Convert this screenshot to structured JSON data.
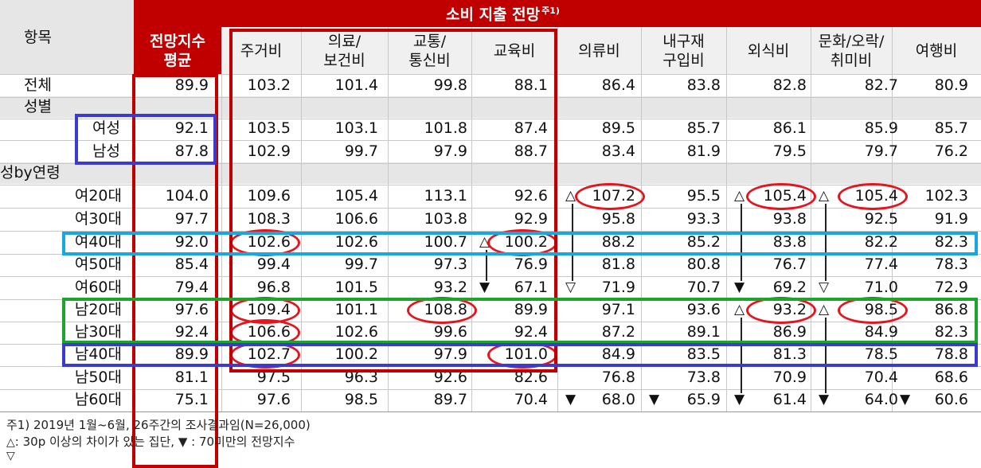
{
  "header": {
    "item_label": "항목",
    "group_title": "소비 지출 전망",
    "group_title_note": "주1)",
    "index_label": "전망지수\n평균",
    "categories": [
      "주거비",
      "의료/\n보건비",
      "교통/\n통신비",
      "교육비",
      "의류비",
      "내구재\n구입비",
      "외식비",
      "문화/오락/\n취미비",
      "여행비"
    ]
  },
  "chart_data": {
    "type": "table",
    "columns": [
      "전망지수 평균",
      "주거비",
      "의료/보건비",
      "교통/통신비",
      "교육비",
      "의류비",
      "내구재구입비",
      "외식비",
      "문화/오락/취미비",
      "여행비"
    ],
    "rows": [
      {
        "label": "전체",
        "values": [
          "89.9",
          "103.2",
          "101.4",
          "99.8",
          "88.1",
          "86.4",
          "83.8",
          "82.8",
          "82.7",
          "80.9"
        ]
      },
      {
        "label": "성별",
        "section": true
      },
      {
        "label": "여성",
        "values": [
          "92.1",
          "103.5",
          "103.1",
          "101.8",
          "87.4",
          "89.5",
          "85.7",
          "86.1",
          "85.9",
          "85.7"
        ]
      },
      {
        "label": "남성",
        "values": [
          "87.8",
          "102.9",
          "99.7",
          "97.9",
          "88.7",
          "83.4",
          "81.9",
          "79.5",
          "79.7",
          "76.2"
        ]
      },
      {
        "label": "성by연령",
        "section": true
      },
      {
        "label": "여20대",
        "values": [
          "104.0",
          "109.6",
          "105.4",
          "113.1",
          "92.6",
          "107.2",
          "95.5",
          "105.4",
          "105.4",
          "102.3"
        ]
      },
      {
        "label": "여30대",
        "values": [
          "97.7",
          "108.3",
          "106.6",
          "103.8",
          "92.9",
          "95.8",
          "93.3",
          "93.8",
          "92.5",
          "91.9"
        ]
      },
      {
        "label": "여40대",
        "values": [
          "92.0",
          "102.6",
          "102.6",
          "100.7",
          "100.2",
          "88.2",
          "85.2",
          "83.8",
          "82.2",
          "82.3"
        ]
      },
      {
        "label": "여50대",
        "values": [
          "85.4",
          "99.4",
          "99.7",
          "97.3",
          "76.9",
          "81.8",
          "80.8",
          "76.7",
          "77.4",
          "78.3"
        ]
      },
      {
        "label": "여60대",
        "values": [
          "79.4",
          "96.8",
          "101.5",
          "93.2",
          "67.1",
          "71.9",
          "70.7",
          "69.2",
          "71.0",
          "72.9"
        ]
      },
      {
        "label": "남20대",
        "values": [
          "97.6",
          "109.4",
          "101.1",
          "108.8",
          "89.9",
          "97.1",
          "93.6",
          "93.2",
          "98.5",
          "86.8"
        ]
      },
      {
        "label": "남30대",
        "values": [
          "92.4",
          "106.6",
          "102.6",
          "99.6",
          "92.4",
          "87.2",
          "89.1",
          "86.9",
          "84.9",
          "82.3"
        ]
      },
      {
        "label": "남40대",
        "values": [
          "89.9",
          "102.7",
          "100.2",
          "97.9",
          "101.0",
          "84.9",
          "83.5",
          "81.3",
          "78.5",
          "78.8"
        ]
      },
      {
        "label": "남50대",
        "values": [
          "81.1",
          "97.5",
          "96.3",
          "92.6",
          "82.6",
          "76.8",
          "73.8",
          "70.9",
          "70.4",
          "68.6"
        ]
      },
      {
        "label": "남60대",
        "values": [
          "75.1",
          "97.6",
          "98.5",
          "89.7",
          "70.4",
          "68.0",
          "65.9",
          "61.4",
          "64.0",
          "60.6"
        ]
      }
    ],
    "markers": [
      {
        "row": "여20대",
        "col": "의류비",
        "symbol": "△"
      },
      {
        "row": "여20대",
        "col": "외식비",
        "symbol": "△"
      },
      {
        "row": "여20대",
        "col": "문화/오락/취미비",
        "symbol": "△"
      },
      {
        "row": "여40대",
        "col": "교육비",
        "symbol": "△"
      },
      {
        "row": "여60대",
        "col": "교육비",
        "symbol": "▼"
      },
      {
        "row": "여60대",
        "col": "의류비",
        "symbol": "▽"
      },
      {
        "row": "여60대",
        "col": "외식비",
        "symbol": "▼"
      },
      {
        "row": "여60대",
        "col": "문화/오락/취미비",
        "symbol": "▽"
      },
      {
        "row": "남20대",
        "col": "외식비",
        "symbol": "△"
      },
      {
        "row": "남20대",
        "col": "문화/오락/취미비",
        "symbol": "△"
      },
      {
        "row": "남60대",
        "col": "의류비",
        "symbol": "▼"
      },
      {
        "row": "남60대",
        "col": "내구재구입비",
        "symbol": "▼"
      },
      {
        "row": "남60대",
        "col": "외식비",
        "symbol": "▼"
      },
      {
        "row": "남60대",
        "col": "문화/오락/취미비",
        "symbol": "▼"
      },
      {
        "row": "남60대",
        "col": "여행비",
        "symbol": "▼"
      }
    ],
    "highlights": [
      {
        "row": "여40대",
        "col": "주거비"
      },
      {
        "row": "여40대",
        "col": "교육비"
      },
      {
        "row": "여20대",
        "col": "의류비"
      },
      {
        "row": "여20대",
        "col": "외식비"
      },
      {
        "row": "여20대",
        "col": "문화/오락/취미비"
      },
      {
        "row": "남20대",
        "col": "주거비"
      },
      {
        "row": "남30대",
        "col": "주거비"
      },
      {
        "row": "남20대",
        "col": "교통/통신비"
      },
      {
        "row": "남20대",
        "col": "외식비"
      },
      {
        "row": "남20대",
        "col": "문화/오락/취미비"
      },
      {
        "row": "남40대",
        "col": "주거비"
      },
      {
        "row": "남40대",
        "col": "교육비"
      }
    ]
  },
  "footnotes": {
    "note1": "주1) 2019년 1월~6월, 26주간의 조사결과임(N=26,000)",
    "note2": ": 30p 이상의 차이가 있는 집단, ▼ : 70미만의 전망지수"
  },
  "colors": {
    "header_red": "#c00000",
    "highlight_red": "#e5151e",
    "box_blue": "#3b3bd1",
    "box_cyan": "#19a7e0",
    "box_green": "#1fa32f",
    "section_band": "#e6e6e6"
  }
}
